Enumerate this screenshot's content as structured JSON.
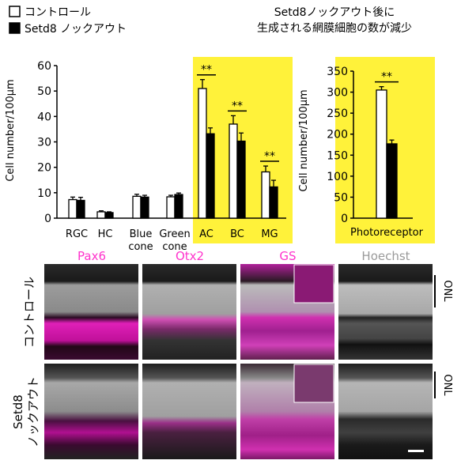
{
  "header": {
    "title_line1": "Setd8ノックアウト後に",
    "title_line2": "生成される網膜細胞の数が減少"
  },
  "legend": [
    {
      "label": "コントロール",
      "color": "#ffffff"
    },
    {
      "label": "Setd8 ノックアウト",
      "color": "#000000"
    }
  ],
  "colors": {
    "highlight": "#fff23a",
    "magenta": "#ff33cc",
    "grey_label": "#9a9a9a",
    "black": "#000000"
  },
  "chart_data": [
    {
      "type": "bar",
      "ylabel": "Cell number/100μm",
      "ylim": [
        0,
        60
      ],
      "yticks": [
        0,
        10,
        20,
        30,
        40,
        50,
        60
      ],
      "categories": [
        "RGC",
        "HC",
        "Blue cone",
        "Green cone",
        "AC",
        "BC",
        "MG"
      ],
      "highlighted_categories": [
        "AC",
        "BC",
        "MG"
      ],
      "series": [
        {
          "name": "コントロール",
          "values": [
            7.3,
            2.5,
            8.6,
            8.4,
            51.0,
            37.0,
            18.2
          ],
          "errors": [
            1.0,
            0.4,
            0.8,
            0.6,
            3.5,
            3.3,
            2.3
          ]
        },
        {
          "name": "Setd8 ノックアウト",
          "values": [
            7.0,
            2.2,
            8.3,
            9.3,
            33.2,
            30.3,
            12.3
          ],
          "errors": [
            1.2,
            0.3,
            0.7,
            0.6,
            2.3,
            3.2,
            2.6
          ]
        }
      ],
      "significance": [
        {
          "category": "AC",
          "label": "**"
        },
        {
          "category": "BC",
          "label": "**"
        },
        {
          "category": "MG",
          "label": "**"
        }
      ]
    },
    {
      "type": "bar",
      "ylabel": "Cell number/100μm",
      "ylim": [
        0,
        350
      ],
      "yticks": [
        0,
        50,
        100,
        150,
        200,
        250,
        300,
        350
      ],
      "categories": [
        "Photoreceptor"
      ],
      "highlighted_categories": [
        "Photoreceptor"
      ],
      "series": [
        {
          "name": "コントロール",
          "values": [
            305
          ],
          "errors": [
            8
          ]
        },
        {
          "name": "Setd8 ノックアウト",
          "values": [
            177
          ],
          "errors": [
            9
          ]
        }
      ],
      "significance": [
        {
          "category": "Photoreceptor",
          "label": "**"
        }
      ]
    }
  ],
  "micrographs": {
    "columns": [
      {
        "label": "Pax6",
        "color": "#ff33cc"
      },
      {
        "label": "Otx2",
        "color": "#ff33cc"
      },
      {
        "label": "GS",
        "color": "#ff33cc"
      },
      {
        "label": "Hoechst",
        "color": "#9a9a9a"
      }
    ],
    "rows": [
      {
        "label": "コントロール"
      },
      {
        "label": "Setd8 ノックアウト"
      }
    ],
    "layer_label": "ONL"
  }
}
